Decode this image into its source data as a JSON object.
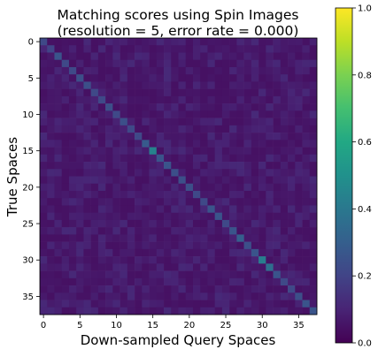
{
  "chart_data": {
    "type": "heatmap",
    "title_lines": [
      "Matching scores using Spin Images",
      "(resolution = 5, error rate = 0.000)"
    ],
    "xlabel": "Down-sampled Query Spaces",
    "ylabel": "True Spaces",
    "n_rows": 38,
    "n_cols": 38,
    "x_ticks": [
      0,
      5,
      10,
      15,
      20,
      25,
      30,
      35
    ],
    "y_ticks": [
      0,
      5,
      10,
      15,
      20,
      25,
      30,
      35
    ],
    "colorbar": {
      "colormap": "viridis",
      "range": [
        0.0,
        1.0
      ],
      "ticks": [
        "0.0",
        "0.2",
        "0.4",
        "0.6",
        "0.8",
        "1.0"
      ]
    },
    "diagonal_values": [
      0.22,
      0.2,
      0.26,
      0.22,
      0.22,
      0.24,
      0.24,
      0.22,
      0.22,
      0.24,
      0.22,
      0.24,
      0.22,
      0.22,
      0.28,
      0.44,
      0.26,
      0.26,
      0.24,
      0.24,
      0.24,
      0.22,
      0.22,
      0.26,
      0.26,
      0.22,
      0.26,
      0.3,
      0.24,
      0.26,
      0.42,
      0.36,
      0.26,
      0.22,
      0.22,
      0.24,
      0.26,
      0.26
    ],
    "off_diagonal_typical": 0.06,
    "off_diagonal_max": 0.13,
    "error_rate": 0.0
  }
}
